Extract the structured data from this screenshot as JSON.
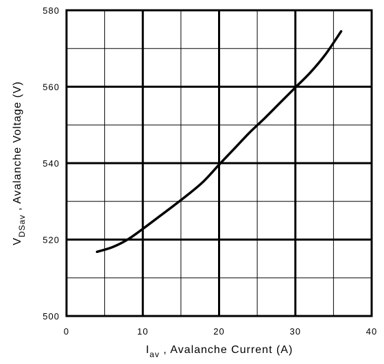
{
  "chart_data": {
    "type": "line",
    "xlabel": {
      "prefix": "I",
      "sub": "av",
      "rest": " , Avalanche Current  (A)"
    },
    "ylabel": {
      "prefix": "V",
      "sub": "DSav",
      "rest": " , Avalanche Voltage (V)"
    },
    "xlim": [
      0,
      40
    ],
    "ylim": [
      500,
      580
    ],
    "x_ticks": [
      0,
      10,
      20,
      30,
      40
    ],
    "y_ticks": [
      500,
      520,
      540,
      560,
      580
    ],
    "x_minor": [
      5,
      15,
      25,
      35
    ],
    "y_minor": [
      510,
      530,
      550,
      570
    ],
    "grid": true,
    "series": [
      {
        "x": [
          4,
          6,
          8,
          10,
          12,
          14,
          16,
          18,
          20,
          22,
          24,
          26,
          28,
          30,
          32,
          34,
          36
        ],
        "y": [
          516.8,
          518.0,
          520.0,
          522.8,
          525.8,
          528.8,
          531.9,
          535.3,
          539.6,
          543.8,
          548.0,
          551.8,
          555.8,
          559.8,
          563.8,
          568.6,
          574.5
        ],
        "color": "#000000"
      }
    ]
  }
}
